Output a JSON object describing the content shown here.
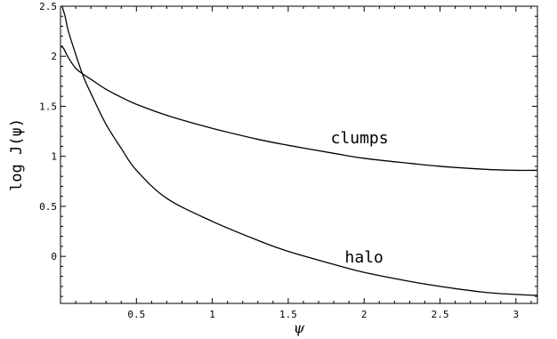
{
  "chart_data": {
    "type": "line",
    "title": "",
    "xlabel": "ψ",
    "ylabel": "log J(ψ)",
    "xlim": [
      0,
      3.1416
    ],
    "ylim": [
      -0.47,
      2.5
    ],
    "x_ticks": [
      0.5,
      1,
      1.5,
      2,
      2.5,
      3
    ],
    "x_tick_labels": [
      "0.5",
      "1",
      "1.5",
      "2",
      "2.5",
      "3"
    ],
    "y_ticks": [
      0,
      0.5,
      1,
      1.5,
      2,
      2.5
    ],
    "y_tick_labels": [
      "0",
      "0.5",
      "1",
      "1.5",
      "2",
      "2.5"
    ],
    "grid": false,
    "legend": "none",
    "series": [
      {
        "name": "clumps",
        "x": [
          0.0,
          0.02,
          0.05,
          0.1,
          0.15,
          0.2,
          0.3,
          0.4,
          0.5,
          0.7,
          1.0,
          1.3,
          1.5,
          1.8,
          2.0,
          2.3,
          2.5,
          2.8,
          3.0,
          3.1416
        ],
        "y": [
          2.1,
          2.08,
          1.99,
          1.88,
          1.82,
          1.77,
          1.67,
          1.59,
          1.52,
          1.41,
          1.28,
          1.17,
          1.11,
          1.03,
          0.98,
          0.93,
          0.9,
          0.87,
          0.86,
          0.86
        ]
      },
      {
        "name": "halo",
        "x": [
          0.0,
          0.03,
          0.05,
          0.1,
          0.15,
          0.2,
          0.3,
          0.4,
          0.5,
          0.7,
          1.0,
          1.3,
          1.5,
          1.8,
          2.0,
          2.3,
          2.5,
          2.8,
          3.0,
          3.1416
        ],
        "y": [
          2.55,
          2.4,
          2.26,
          2.02,
          1.8,
          1.63,
          1.32,
          1.08,
          0.86,
          0.58,
          0.35,
          0.16,
          0.05,
          -0.08,
          -0.16,
          -0.25,
          -0.3,
          -0.36,
          -0.38,
          -0.39
        ]
      }
    ],
    "annotations": [
      {
        "text": "clumps",
        "x": 1.97,
        "y": 1.13
      },
      {
        "text": "halo",
        "x": 2.0,
        "y": -0.06
      }
    ]
  }
}
